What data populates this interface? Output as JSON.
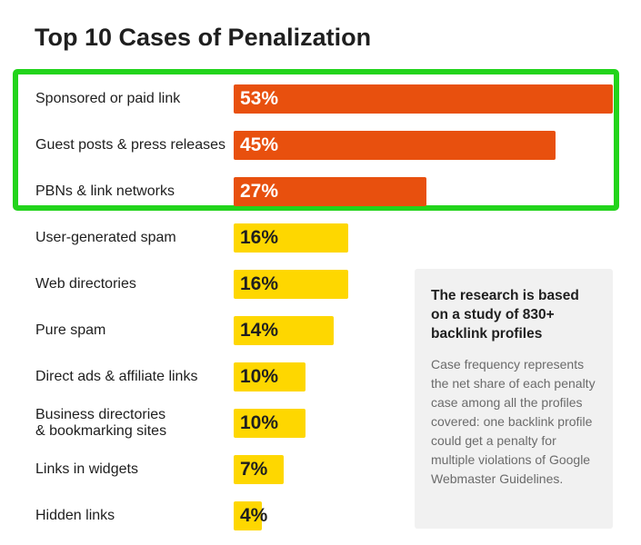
{
  "chart_data": {
    "type": "bar",
    "orientation": "horizontal",
    "title": "Top 10 Cases of Penalization",
    "categories": [
      "Sponsored or paid link",
      "Guest posts & press releases",
      "PBNs & link networks",
      "User-generated spam",
      "Web directories",
      "Pure spam",
      "Direct ads & affiliate links",
      "Business directories\n& bookmarking sites",
      "Links in widgets",
      "Hidden links"
    ],
    "values": [
      53,
      45,
      27,
      16,
      16,
      14,
      10,
      10,
      7,
      4
    ],
    "value_labels": [
      "53%",
      "45%",
      "27%",
      "16%",
      "16%",
      "14%",
      "10%",
      "10%",
      "7%",
      "4%"
    ],
    "unit": "%",
    "xlim": [
      0,
      53
    ],
    "highlighted_count": 3,
    "colors": {
      "highlighted": "#e8500e",
      "normal": "#fed700",
      "highlight_label": "#ffffff",
      "normal_label": "#1f1f1f",
      "highlight_border": "#22d41b"
    },
    "note": {
      "heading": "The research is based on a study of 830+ backlink profiles",
      "body": "Case frequency represents the net share of each penalty case among all the profiles covered: one backlink profile could get a penalty for multiple violations of Google Webmaster Guidelines."
    }
  }
}
